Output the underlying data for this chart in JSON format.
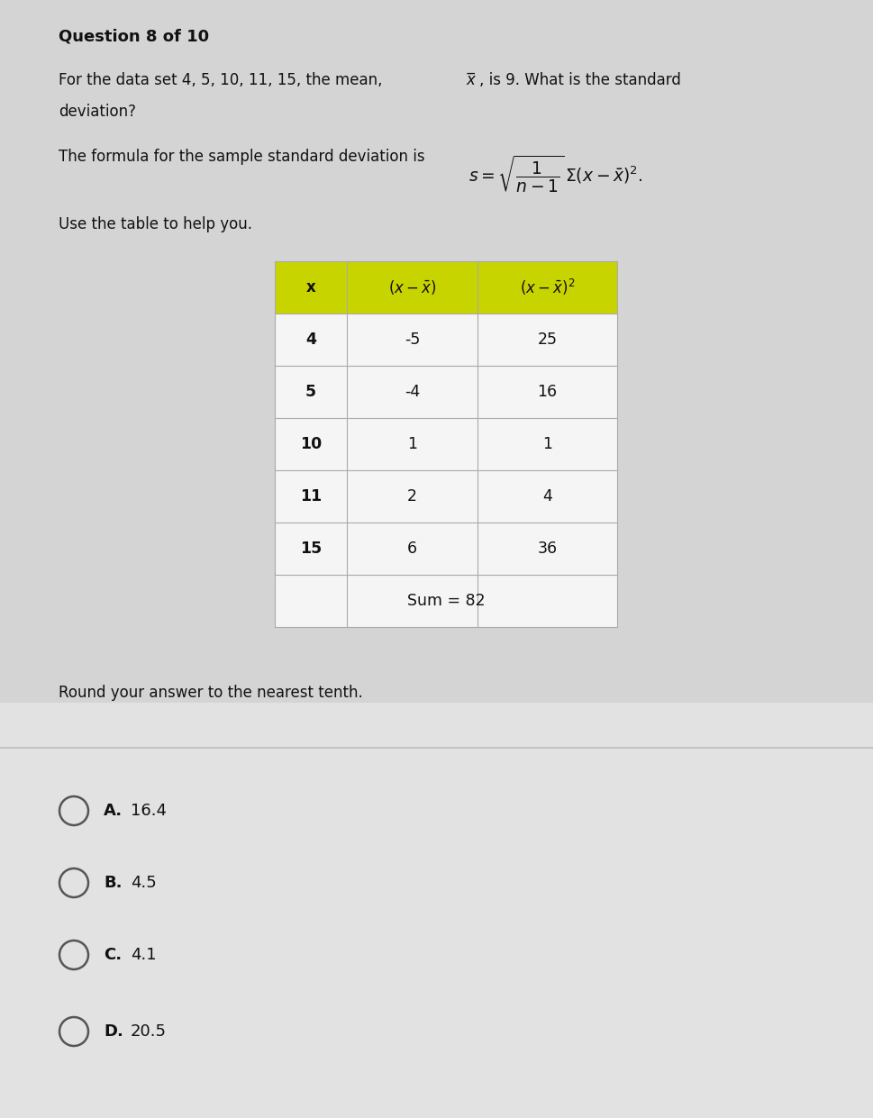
{
  "question_header": "Question 8 of 10",
  "q_line1": "For the data set 4, 5, 10, 11, 15, the mean, ",
  "q_xbar": "x̅",
  "q_line1b": ", is 9. What is the standard",
  "q_line2": "deviation?",
  "formula_line": "The formula for the sample standard deviation is ",
  "use_table_text": "Use the table to help you.",
  "table_data": [
    [
      "4",
      "-5",
      "25"
    ],
    [
      "5",
      "-4",
      "16"
    ],
    [
      "10",
      "1",
      "1"
    ],
    [
      "11",
      "2",
      "4"
    ],
    [
      "15",
      "6",
      "36"
    ]
  ],
  "table_sum_text": "Sum = 82",
  "round_text": "Round your answer to the nearest tenth.",
  "options": [
    {
      "label": "A.",
      "value": "16.4"
    },
    {
      "label": "B.",
      "value": "4.5"
    },
    {
      "label": "C.",
      "value": "4.1"
    },
    {
      "label": "D.",
      "value": "20.5"
    }
  ],
  "bg_color_top": "#d8d8d8",
  "bg_color_bottom": "#e0e0e0",
  "table_header_bg": "#c8d400",
  "table_border_color": "#aaaaaa",
  "table_cell_bg": "#f0f0f0",
  "divider_color": "#bbbbbb"
}
